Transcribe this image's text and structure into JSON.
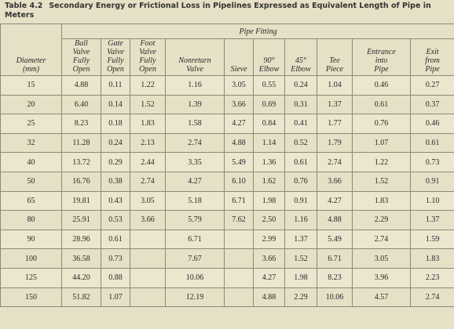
{
  "title": {
    "label": "Table 4.2",
    "text": "Secondary Energy or Frictional Loss in Pipelines Expressed as Equivalent Length of Pipe in Meters"
  },
  "table": {
    "group_header": "Pipe Fitting",
    "columns": [
      [
        "Diameter",
        "(mm)"
      ],
      [
        "Ball",
        "Valve",
        "Fully",
        "Open"
      ],
      [
        "Gate",
        "Valve",
        "Fully",
        "Open"
      ],
      [
        "Foot",
        "Valve",
        "Fully",
        "Open"
      ],
      [
        "Nonreturn",
        "Valve"
      ],
      [
        "Sieve"
      ],
      [
        "90°",
        "Elbow"
      ],
      [
        "45°",
        "Elbow"
      ],
      [
        "Tee",
        "Piece"
      ],
      [
        "Entrance",
        "into",
        "Pipe"
      ],
      [
        "Exit",
        "from",
        "Pipe"
      ]
    ],
    "rows": [
      [
        "15",
        "4.88",
        "0.11",
        "1.22",
        "1.16",
        "3.05",
        "0.55",
        "0.24",
        "1.04",
        "0.46",
        "0.27"
      ],
      [
        "20",
        "6.40",
        "0.14",
        "1.52",
        "1.39",
        "3.66",
        "0.69",
        "0.31",
        "1.37",
        "0.61",
        "0.37"
      ],
      [
        "25",
        "8.23",
        "0.18",
        "1.83",
        "1.58",
        "4.27",
        "0.84",
        "0.41",
        "1.77",
        "0.76",
        "0.46"
      ],
      [
        "32",
        "11.28",
        "0.24",
        "2.13",
        "2.74",
        "4.88",
        "1.14",
        "0.52",
        "1.79",
        "1.07",
        "0.61"
      ],
      [
        "40",
        "13.72",
        "0.29",
        "2.44",
        "3.35",
        "5.49",
        "1.36",
        "0.61",
        "2.74",
        "1.22",
        "0.73"
      ],
      [
        "50",
        "16.76",
        "0.38",
        "2.74",
        "4.27",
        "6.10",
        "1.62",
        "0.76",
        "3.66",
        "1.52",
        "0.91"
      ],
      [
        "65",
        "19.81",
        "0.43",
        "3.05",
        "5.18",
        "6.71",
        "1.98",
        "0.91",
        "4.27",
        "1.83",
        "1.10"
      ],
      [
        "80",
        "25.91",
        "0.53",
        "3.66",
        "5.79",
        "7.62",
        "2.50",
        "1.16",
        "4.88",
        "2.29",
        "1.37"
      ],
      [
        "90",
        "28.96",
        "0.61",
        null,
        "6.71",
        null,
        "2.99",
        "1.37",
        "5.49",
        "2.74",
        "1.59"
      ],
      [
        "100",
        "36.58",
        "0.73",
        null,
        "7.67",
        null,
        "3.66",
        "1.52",
        "6.71",
        "3.05",
        "1.83"
      ],
      [
        "125",
        "44.20",
        "0.88",
        null,
        "10.06",
        null,
        "4.27",
        "1.98",
        "8.23",
        "3.96",
        "2.23"
      ],
      [
        "150",
        "51.82",
        "1.07",
        null,
        "12.19",
        null,
        "4.88",
        "2.29",
        "10.06",
        "4.57",
        "2.74"
      ]
    ]
  }
}
